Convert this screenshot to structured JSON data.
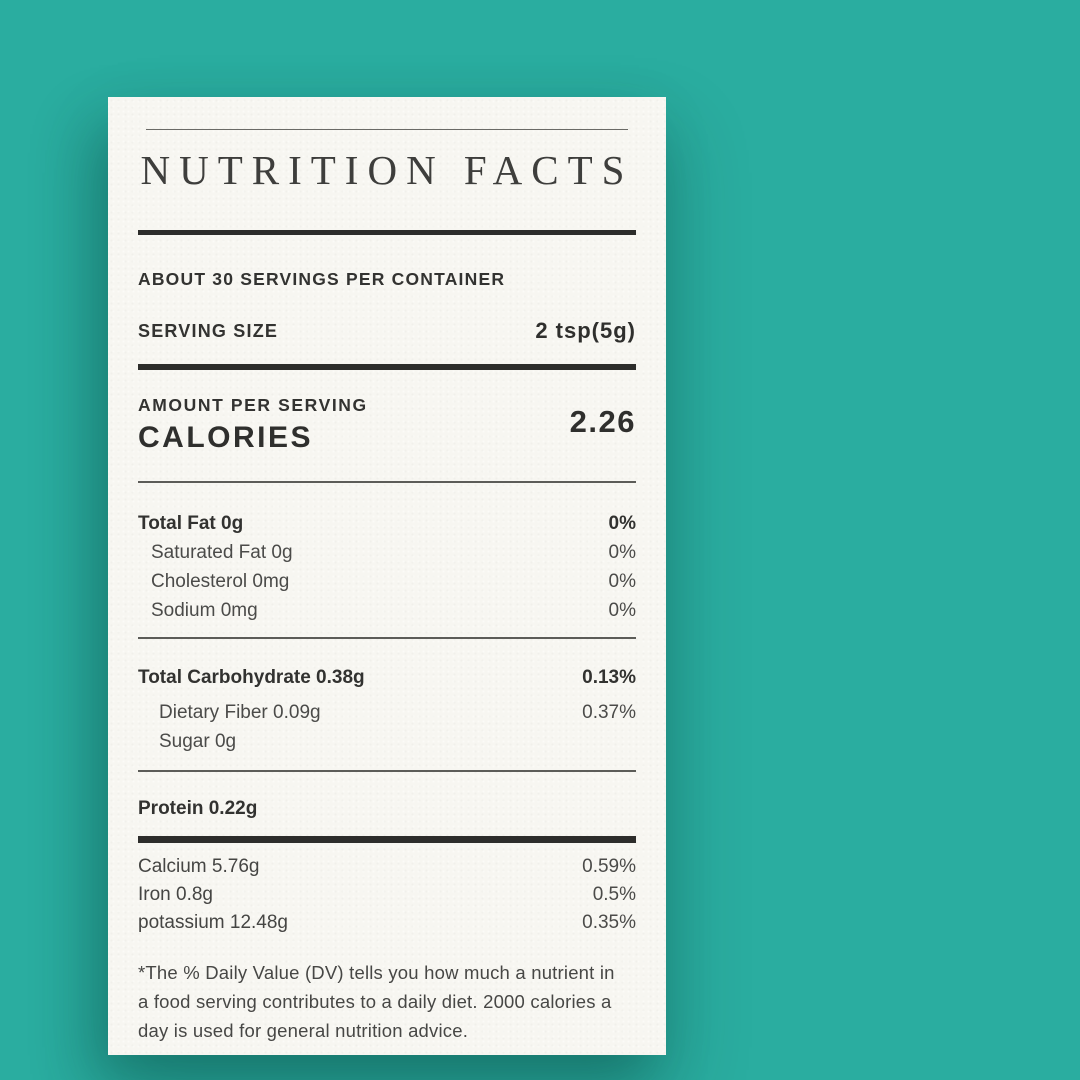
{
  "page": {
    "background_color": "#2aada0",
    "card_color": "#f7f6f1",
    "text_color": "#3a3a3a",
    "rule_color": "#2d2d2b"
  },
  "label": {
    "title": "NUTRITION FACTS",
    "servings_line": "ABOUT 30 SERVINGS PER CONTAINER",
    "serving_size_label": "SERVING SIZE",
    "serving_size_value": "2 tsp(5g)",
    "amount_per_serving_label": "AMOUNT PER SERVING",
    "calories_label": "CALORIES",
    "calories_value": "2.26",
    "fat_rows": [
      {
        "name": "Total Fat 0g",
        "dv": "0%"
      },
      {
        "name": "Saturated Fat 0g",
        "dv": "0%"
      },
      {
        "name": "Cholesterol 0mg",
        "dv": "0%"
      },
      {
        "name": "Sodium 0mg",
        "dv": "0%"
      }
    ],
    "carb_rows": [
      {
        "name": "Total Carbohydrate 0.38g",
        "dv": "0.13%"
      },
      {
        "name": "Dietary Fiber 0.09g",
        "dv": "0.37%"
      },
      {
        "name": "Sugar 0g",
        "dv": ""
      }
    ],
    "protein_row": {
      "name": "Protein 0.22g",
      "dv": ""
    },
    "mineral_rows": [
      {
        "name": "Calcium  5.76g",
        "dv": "0.59%"
      },
      {
        "name": "Iron 0.8g",
        "dv": "0.5%"
      },
      {
        "name": "potassium 12.48g",
        "dv": "0.35%"
      }
    ],
    "footnote": "*The % Daily Value (DV) tells you how much a nutrient in a food serving contributes to a daily diet. 2000 calories a day is used for general nutrition advice."
  }
}
